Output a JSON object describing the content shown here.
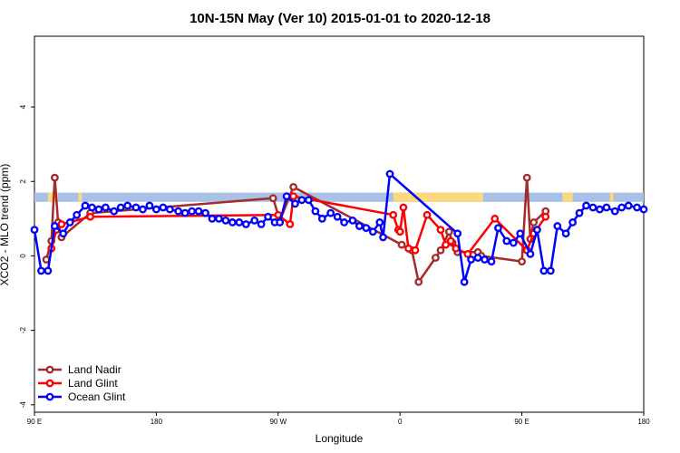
{
  "chart_data": {
    "type": "line",
    "title": "10N-15N May (Ver 10)   2015-01-01 to 2020-12-18",
    "xlabel": "Longitude",
    "ylabel": "XCO2 - MLO trend (ppm)",
    "xlim": [
      -90,
      270
    ],
    "ylim": [
      -4.2,
      5.9
    ],
    "x_ticks": [
      {
        "value": -90,
        "label": "90 E"
      },
      {
        "value": -18,
        "label": "180"
      },
      {
        "value": 54,
        "label": "90 W"
      },
      {
        "value": 126,
        "label": "0"
      },
      {
        "value": 198,
        "label": "90 E"
      },
      {
        "value": 270,
        "label": "180"
      }
    ],
    "y_ticks": [
      {
        "value": -4,
        "label": "-4"
      },
      {
        "value": -2,
        "label": "-2"
      },
      {
        "value": 0,
        "label": "0"
      },
      {
        "value": 2,
        "label": "2"
      },
      {
        "value": 4,
        "label": "4"
      }
    ],
    "grid": false,
    "legend_position": "bottom-left",
    "band": {
      "y_min": 1.45,
      "y_max": 1.7,
      "ocean_color": "#a9c1e6",
      "land_color": "#fcd97c"
    },
    "land_segments": [
      [
        -82,
        -76
      ],
      [
        -64,
        -62
      ],
      [
        122,
        128
      ],
      [
        128,
        165
      ],
      [
        165,
        175
      ],
      [
        222,
        228
      ],
      [
        250,
        252
      ]
    ],
    "series": [
      {
        "name": "Land Nadir",
        "color": "#a52a2a",
        "x": [
          -83,
          -80,
          -78,
          -76,
          -74,
          -57,
          51,
          55,
          63,
          127,
          133,
          137,
          147,
          150,
          155,
          157,
          160,
          172,
          174,
          198,
          201,
          203,
          205,
          212
        ],
        "y": [
          -0.1,
          0.4,
          2.1,
          0.9,
          0.5,
          1.15,
          1.55,
          0.95,
          1.85,
          0.3,
          0.15,
          -0.7,
          -0.05,
          0.15,
          0.65,
          0.35,
          0.1,
          0.1,
          0.0,
          -0.15,
          2.1,
          0.45,
          0.9,
          1.2
        ]
      },
      {
        "name": "Land Glint",
        "color": "#ff0000",
        "x": [
          -80,
          -77,
          -74,
          -57,
          54,
          61,
          63,
          122,
          125,
          126,
          128,
          131,
          135,
          142,
          150,
          153,
          156,
          159,
          166,
          182,
          201,
          205,
          212
        ],
        "y": [
          0.2,
          0.7,
          0.85,
          1.05,
          1.1,
          0.85,
          1.6,
          1.1,
          0.7,
          0.65,
          1.3,
          0.2,
          0.15,
          1.1,
          0.7,
          0.3,
          0.4,
          0.2,
          0.05,
          1.0,
          0.15,
          0.6,
          1.05
        ]
      },
      {
        "name": "Ocean Glint",
        "color": "#0000ff",
        "x": [
          -90,
          -86,
          -82,
          -78,
          -73,
          -69,
          -65,
          -60,
          -56,
          -52,
          -48,
          -43,
          -39,
          -35,
          -30,
          -26,
          -22,
          -18,
          -14,
          -10,
          -5,
          -1,
          3,
          7,
          11,
          15,
          19,
          23,
          27,
          31,
          35,
          40,
          44,
          48,
          52,
          55,
          59,
          64,
          68,
          72,
          76,
          80,
          85,
          89,
          93,
          98,
          102,
          106,
          110,
          114,
          116,
          120,
          160,
          164,
          168,
          172,
          176,
          180,
          184,
          189,
          193,
          197,
          203,
          207,
          211,
          215,
          219,
          224,
          228,
          232,
          236,
          240,
          244,
          248,
          253,
          257,
          261,
          266,
          270
        ],
        "y": [
          0.7,
          -0.4,
          -0.4,
          0.8,
          0.6,
          0.9,
          1.1,
          1.35,
          1.3,
          1.25,
          1.3,
          1.2,
          1.3,
          1.35,
          1.3,
          1.25,
          1.35,
          1.25,
          1.3,
          1.25,
          1.2,
          1.15,
          1.2,
          1.2,
          1.15,
          1.0,
          1.0,
          0.95,
          0.9,
          0.9,
          0.85,
          0.95,
          0.85,
          1.05,
          0.9,
          0.9,
          1.6,
          1.4,
          1.5,
          1.5,
          1.2,
          1.0,
          1.15,
          1.05,
          0.9,
          0.95,
          0.8,
          0.75,
          0.65,
          0.9,
          0.5,
          2.2,
          0.6,
          -0.7,
          -0.1,
          -0.05,
          -0.1,
          -0.15,
          0.75,
          0.4,
          0.35,
          0.6,
          0.05,
          0.7,
          -0.4,
          -0.4,
          0.8,
          0.6,
          0.9,
          1.15,
          1.35,
          1.3,
          1.25,
          1.3,
          1.2,
          1.3,
          1.35,
          1.3,
          1.25
        ]
      }
    ]
  }
}
